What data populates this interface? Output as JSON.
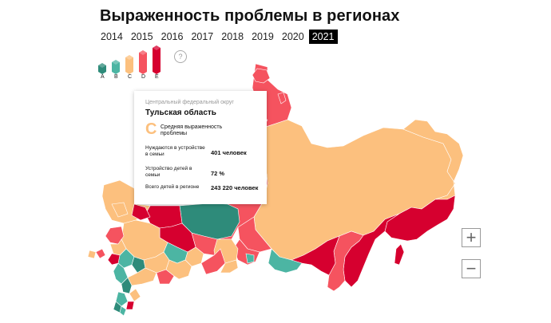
{
  "title": "Выраженность проблемы в регионах",
  "years": [
    "2014",
    "2015",
    "2016",
    "2017",
    "2018",
    "2019",
    "2020",
    "2021"
  ],
  "selected_year": "2021",
  "legend": {
    "help_label": "?",
    "grades": [
      {
        "label": "A",
        "color": "#2e8b7a"
      },
      {
        "label": "B",
        "color": "#4cb5a3"
      },
      {
        "label": "C",
        "color": "#fcc07e"
      },
      {
        "label": "D",
        "color": "#f5535f"
      },
      {
        "label": "E",
        "color": "#d6002f"
      }
    ]
  },
  "tooltip": {
    "district": "Центральный федеральный округ",
    "region": "Тульская область",
    "grade": "C",
    "grade_description": "Средняя выраженность проблемы",
    "rows": [
      {
        "label": "Нуждаются в устройстве в семьи",
        "value": "401 человек"
      },
      {
        "label": "Устройство детей в семьи",
        "value": "72 %"
      },
      {
        "label": "Всего детей в регионе",
        "value": "243 220 человек"
      }
    ]
  },
  "zoom": {
    "in_label": "+",
    "out_label": "−"
  },
  "colors": {
    "A": "#2e8b7a",
    "B": "#4cb5a3",
    "C": "#fcc07e",
    "D": "#f5535f",
    "E": "#d6002f"
  }
}
